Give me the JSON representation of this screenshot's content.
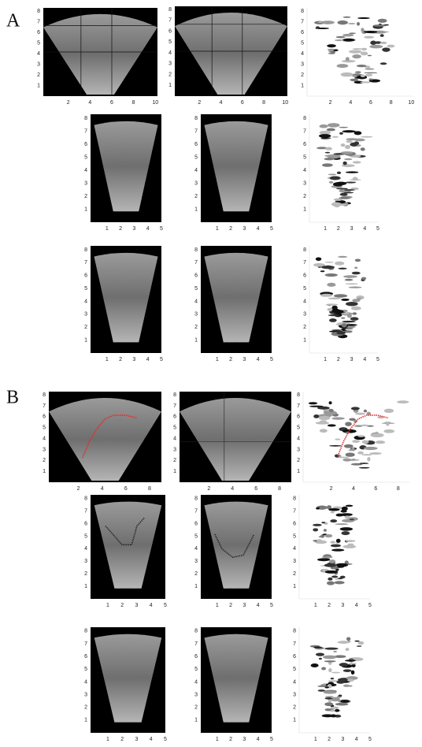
{
  "panel_a": {
    "label": "A",
    "plots": [
      {
        "xlim": [
          -0.3,
          10.2
        ],
        "ylim": [
          0,
          8.3
        ],
        "xticks": [
          2,
          4,
          6,
          8,
          10
        ],
        "yticks": [
          1,
          2,
          3,
          4,
          5,
          6,
          7,
          8
        ]
      },
      {
        "xlim": [
          -0.3,
          10.2
        ],
        "ylim": [
          0,
          8.3
        ],
        "xticks": [
          2,
          4,
          6,
          8,
          10
        ],
        "yticks": [
          1,
          2,
          3,
          4,
          5,
          6,
          7,
          8
        ]
      },
      {
        "xlim": [
          -0.3,
          10.2
        ],
        "ylim": [
          0,
          8.3
        ],
        "xticks": [
          2,
          4,
          6,
          8,
          10
        ],
        "yticks": [
          1,
          2,
          3,
          4,
          5,
          6,
          7,
          8
        ]
      },
      {
        "xlim": [
          -0.2,
          5
        ],
        "ylim": [
          0,
          8.3
        ],
        "xticks": [
          1,
          2,
          3,
          4,
          5
        ],
        "yticks": [
          1,
          2,
          3,
          4,
          5,
          6,
          7,
          8
        ]
      },
      {
        "xlim": [
          -0.2,
          5
        ],
        "ylim": [
          0,
          8.3
        ],
        "xticks": [
          1,
          2,
          3,
          4,
          5
        ],
        "yticks": [
          1,
          2,
          3,
          4,
          5,
          6,
          7,
          8
        ]
      },
      {
        "xlim": [
          -0.2,
          5
        ],
        "ylim": [
          0,
          8.3
        ],
        "xticks": [
          1,
          2,
          3,
          4,
          5
        ],
        "yticks": [
          1,
          2,
          3,
          4,
          5,
          6,
          7,
          8
        ]
      },
      {
        "xlim": [
          -0.2,
          5
        ],
        "ylim": [
          0,
          8.3
        ],
        "xticks": [
          1,
          2,
          3,
          4,
          5
        ],
        "yticks": [
          1,
          2,
          3,
          4,
          5,
          6,
          7,
          8
        ]
      },
      {
        "xlim": [
          -0.2,
          5
        ],
        "ylim": [
          0,
          8.3
        ],
        "xticks": [
          1,
          2,
          3,
          4,
          5
        ],
        "yticks": [
          1,
          2,
          3,
          4,
          5,
          6,
          7,
          8
        ]
      },
      {
        "xlim": [
          -0.2,
          5
        ],
        "ylim": [
          0,
          8.3
        ],
        "xticks": [
          1,
          2,
          3,
          4,
          5
        ],
        "yticks": [
          1,
          2,
          3,
          4,
          5,
          6,
          7,
          8
        ]
      }
    ]
  },
  "panel_b": {
    "label": "B",
    "plots": [
      {
        "xlim": [
          -0.5,
          9
        ],
        "ylim": [
          0,
          8.3
        ],
        "xticks": [
          2,
          4,
          6,
          8
        ],
        "yticks": [
          1,
          2,
          3,
          4,
          5,
          6,
          7,
          8
        ]
      },
      {
        "xlim": [
          -0.5,
          9
        ],
        "ylim": [
          0,
          8.3
        ],
        "xticks": [
          2,
          4,
          6,
          8
        ],
        "yticks": [
          1,
          2,
          3,
          4,
          5,
          6,
          7,
          8
        ]
      },
      {
        "xlim": [
          -0.5,
          9
        ],
        "ylim": [
          0,
          8.3
        ],
        "xticks": [
          2,
          4,
          6,
          8
        ],
        "yticks": [
          1,
          2,
          3,
          4,
          5,
          6,
          7,
          8
        ]
      },
      {
        "xlim": [
          -0.2,
          5
        ],
        "ylim": [
          0,
          8.3
        ],
        "xticks": [
          1,
          2,
          3,
          4,
          5
        ],
        "yticks": [
          1,
          2,
          3,
          4,
          5,
          6,
          7,
          8
        ]
      },
      {
        "xlim": [
          -0.2,
          5
        ],
        "ylim": [
          0,
          8.3
        ],
        "xticks": [
          1,
          2,
          3,
          4,
          5
        ],
        "yticks": [
          1,
          2,
          3,
          4,
          5,
          6,
          7,
          8
        ]
      },
      {
        "xlim": [
          -0.2,
          5
        ],
        "ylim": [
          0,
          8.3
        ],
        "xticks": [
          1,
          2,
          3,
          4,
          5
        ],
        "yticks": [
          1,
          2,
          3,
          4,
          5,
          6,
          7,
          8
        ]
      },
      {
        "xlim": [
          -0.2,
          5
        ],
        "ylim": [
          0,
          8.3
        ],
        "xticks": [
          1,
          2,
          3,
          4,
          5
        ],
        "yticks": [
          1,
          2,
          3,
          4,
          5,
          6,
          7,
          8
        ]
      },
      {
        "xlim": [
          -0.2,
          5
        ],
        "ylim": [
          0,
          8.3
        ],
        "xticks": [
          1,
          2,
          3,
          4,
          5
        ],
        "yticks": [
          1,
          2,
          3,
          4,
          5,
          6,
          7,
          8
        ]
      },
      {
        "xlim": [
          -0.2,
          5
        ],
        "ylim": [
          0,
          8.3
        ],
        "xticks": [
          1,
          2,
          3,
          4,
          5
        ],
        "yticks": [
          1,
          2,
          3,
          4,
          5,
          6,
          7,
          8
        ]
      }
    ]
  }
}
